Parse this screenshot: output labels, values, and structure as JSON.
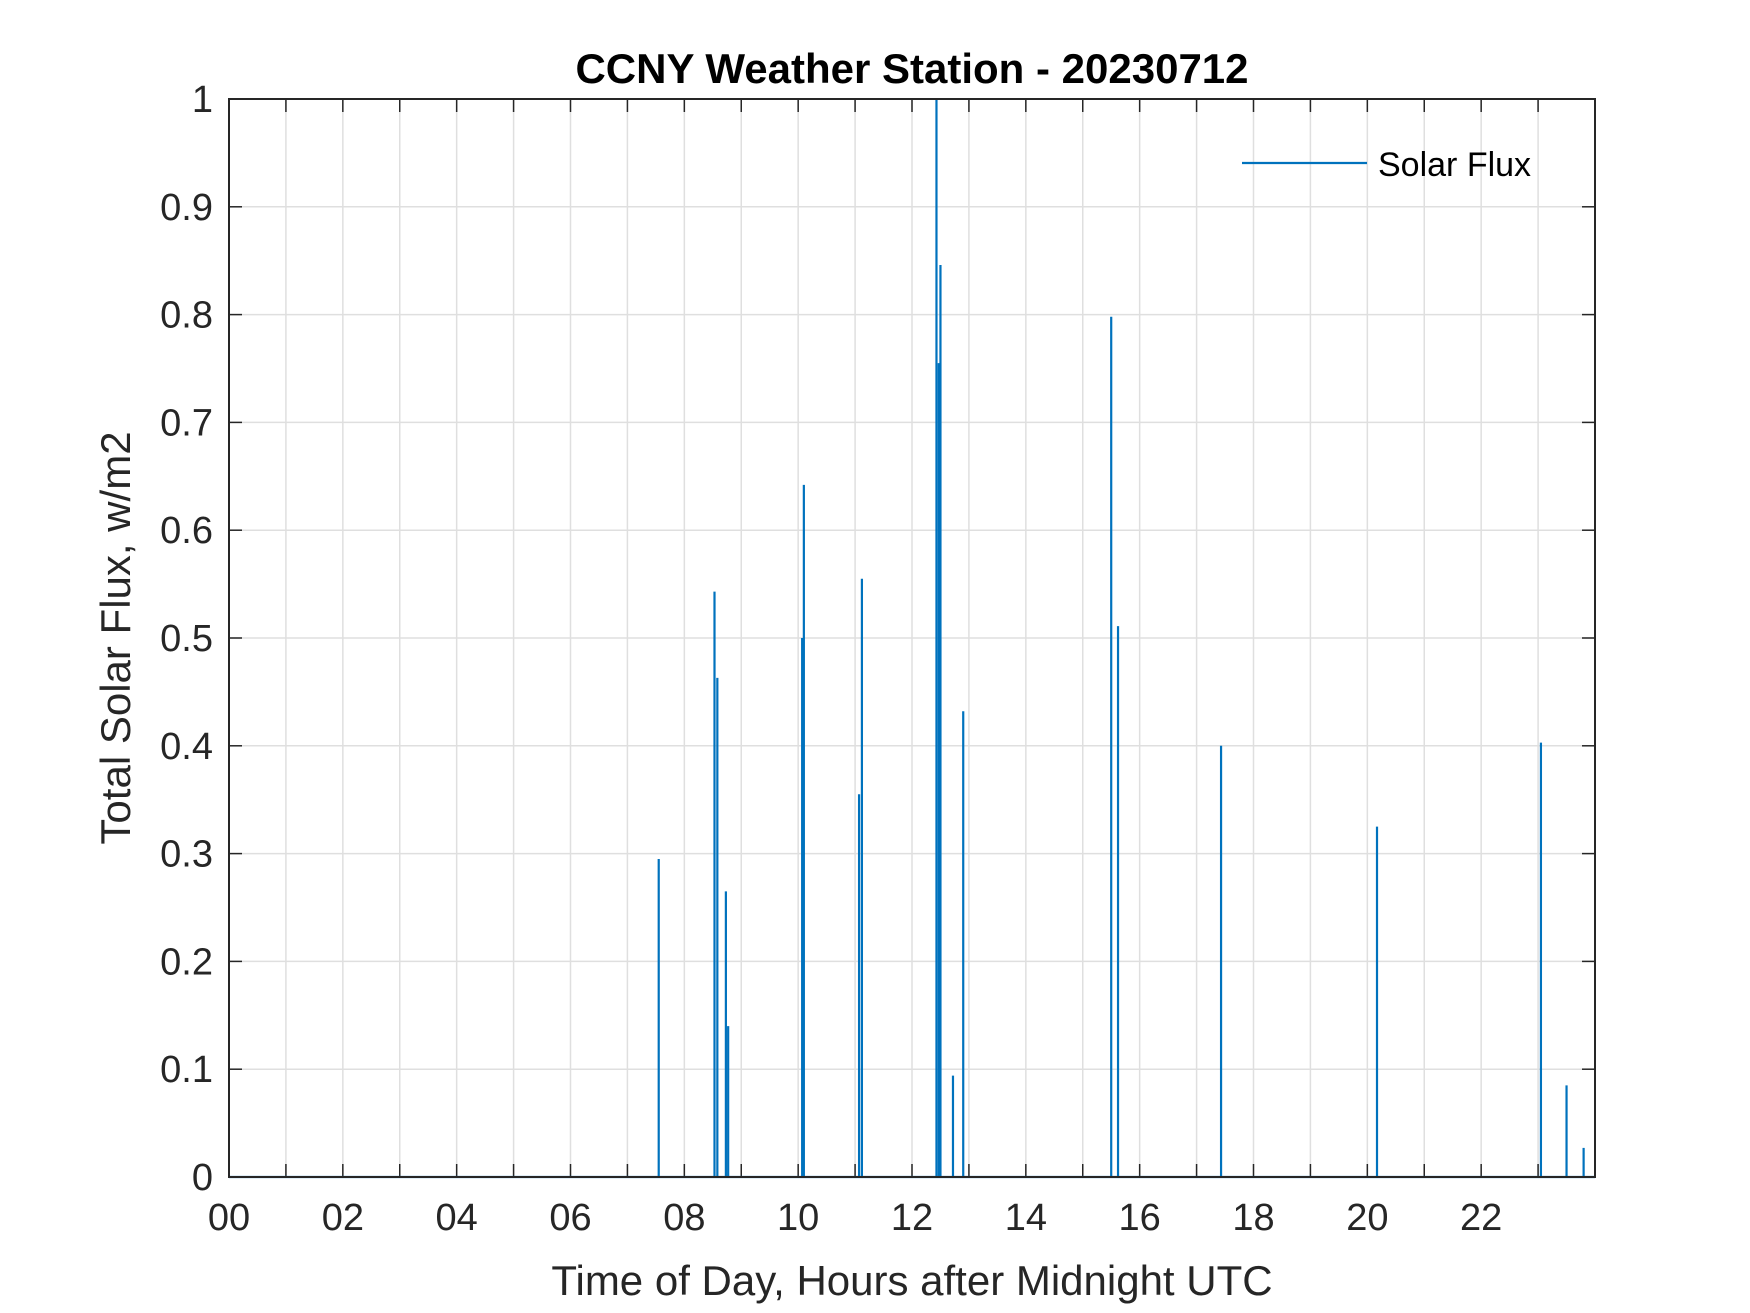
{
  "chart_data": {
    "type": "line",
    "title": "CCNY Weather Station - 20230712",
    "xlabel": "Time of Day, Hours after Midnight UTC",
    "ylabel": "Total Solar Flux, w/m2",
    "xlim": [
      0,
      24
    ],
    "ylim": [
      0,
      1
    ],
    "x_ticks": [
      0,
      2,
      4,
      6,
      8,
      10,
      12,
      14,
      16,
      18,
      20,
      22
    ],
    "x_tick_labels": [
      "00",
      "02",
      "04",
      "06",
      "08",
      "10",
      "12",
      "14",
      "16",
      "18",
      "20",
      "22"
    ],
    "x_minor_ticks": [
      1,
      3,
      5,
      7,
      9,
      11,
      13,
      15,
      17,
      19,
      21,
      23
    ],
    "y_ticks": [
      0,
      0.1,
      0.2,
      0.3,
      0.4,
      0.5,
      0.6,
      0.7,
      0.8,
      0.9,
      1
    ],
    "y_tick_labels": [
      "0",
      "0.1",
      "0.2",
      "0.3",
      "0.4",
      "0.5",
      "0.6",
      "0.7",
      "0.8",
      "0.9",
      "1"
    ],
    "grid": true,
    "legend_position": "top-right",
    "series": [
      {
        "name": "Solar Flux",
        "color": "#0072BD",
        "spikes": [
          {
            "x": 7.55,
            "y": 0.295
          },
          {
            "x": 8.53,
            "y": 0.543
          },
          {
            "x": 8.58,
            "y": 0.463
          },
          {
            "x": 8.73,
            "y": 0.265
          },
          {
            "x": 8.77,
            "y": 0.14
          },
          {
            "x": 10.07,
            "y": 0.5
          },
          {
            "x": 10.1,
            "y": 0.642
          },
          {
            "x": 11.07,
            "y": 0.355
          },
          {
            "x": 11.12,
            "y": 0.555
          },
          {
            "x": 12.43,
            "y": 1.0
          },
          {
            "x": 12.47,
            "y": 0.755
          },
          {
            "x": 12.5,
            "y": 0.846
          },
          {
            "x": 12.72,
            "y": 0.094
          },
          {
            "x": 12.9,
            "y": 0.432
          },
          {
            "x": 15.5,
            "y": 0.798
          },
          {
            "x": 15.62,
            "y": 0.511
          },
          {
            "x": 17.43,
            "y": 0.4
          },
          {
            "x": 20.17,
            "y": 0.325
          },
          {
            "x": 23.05,
            "y": 0.403
          },
          {
            "x": 23.5,
            "y": 0.085
          },
          {
            "x": 23.8,
            "y": 0.027
          }
        ]
      }
    ]
  }
}
